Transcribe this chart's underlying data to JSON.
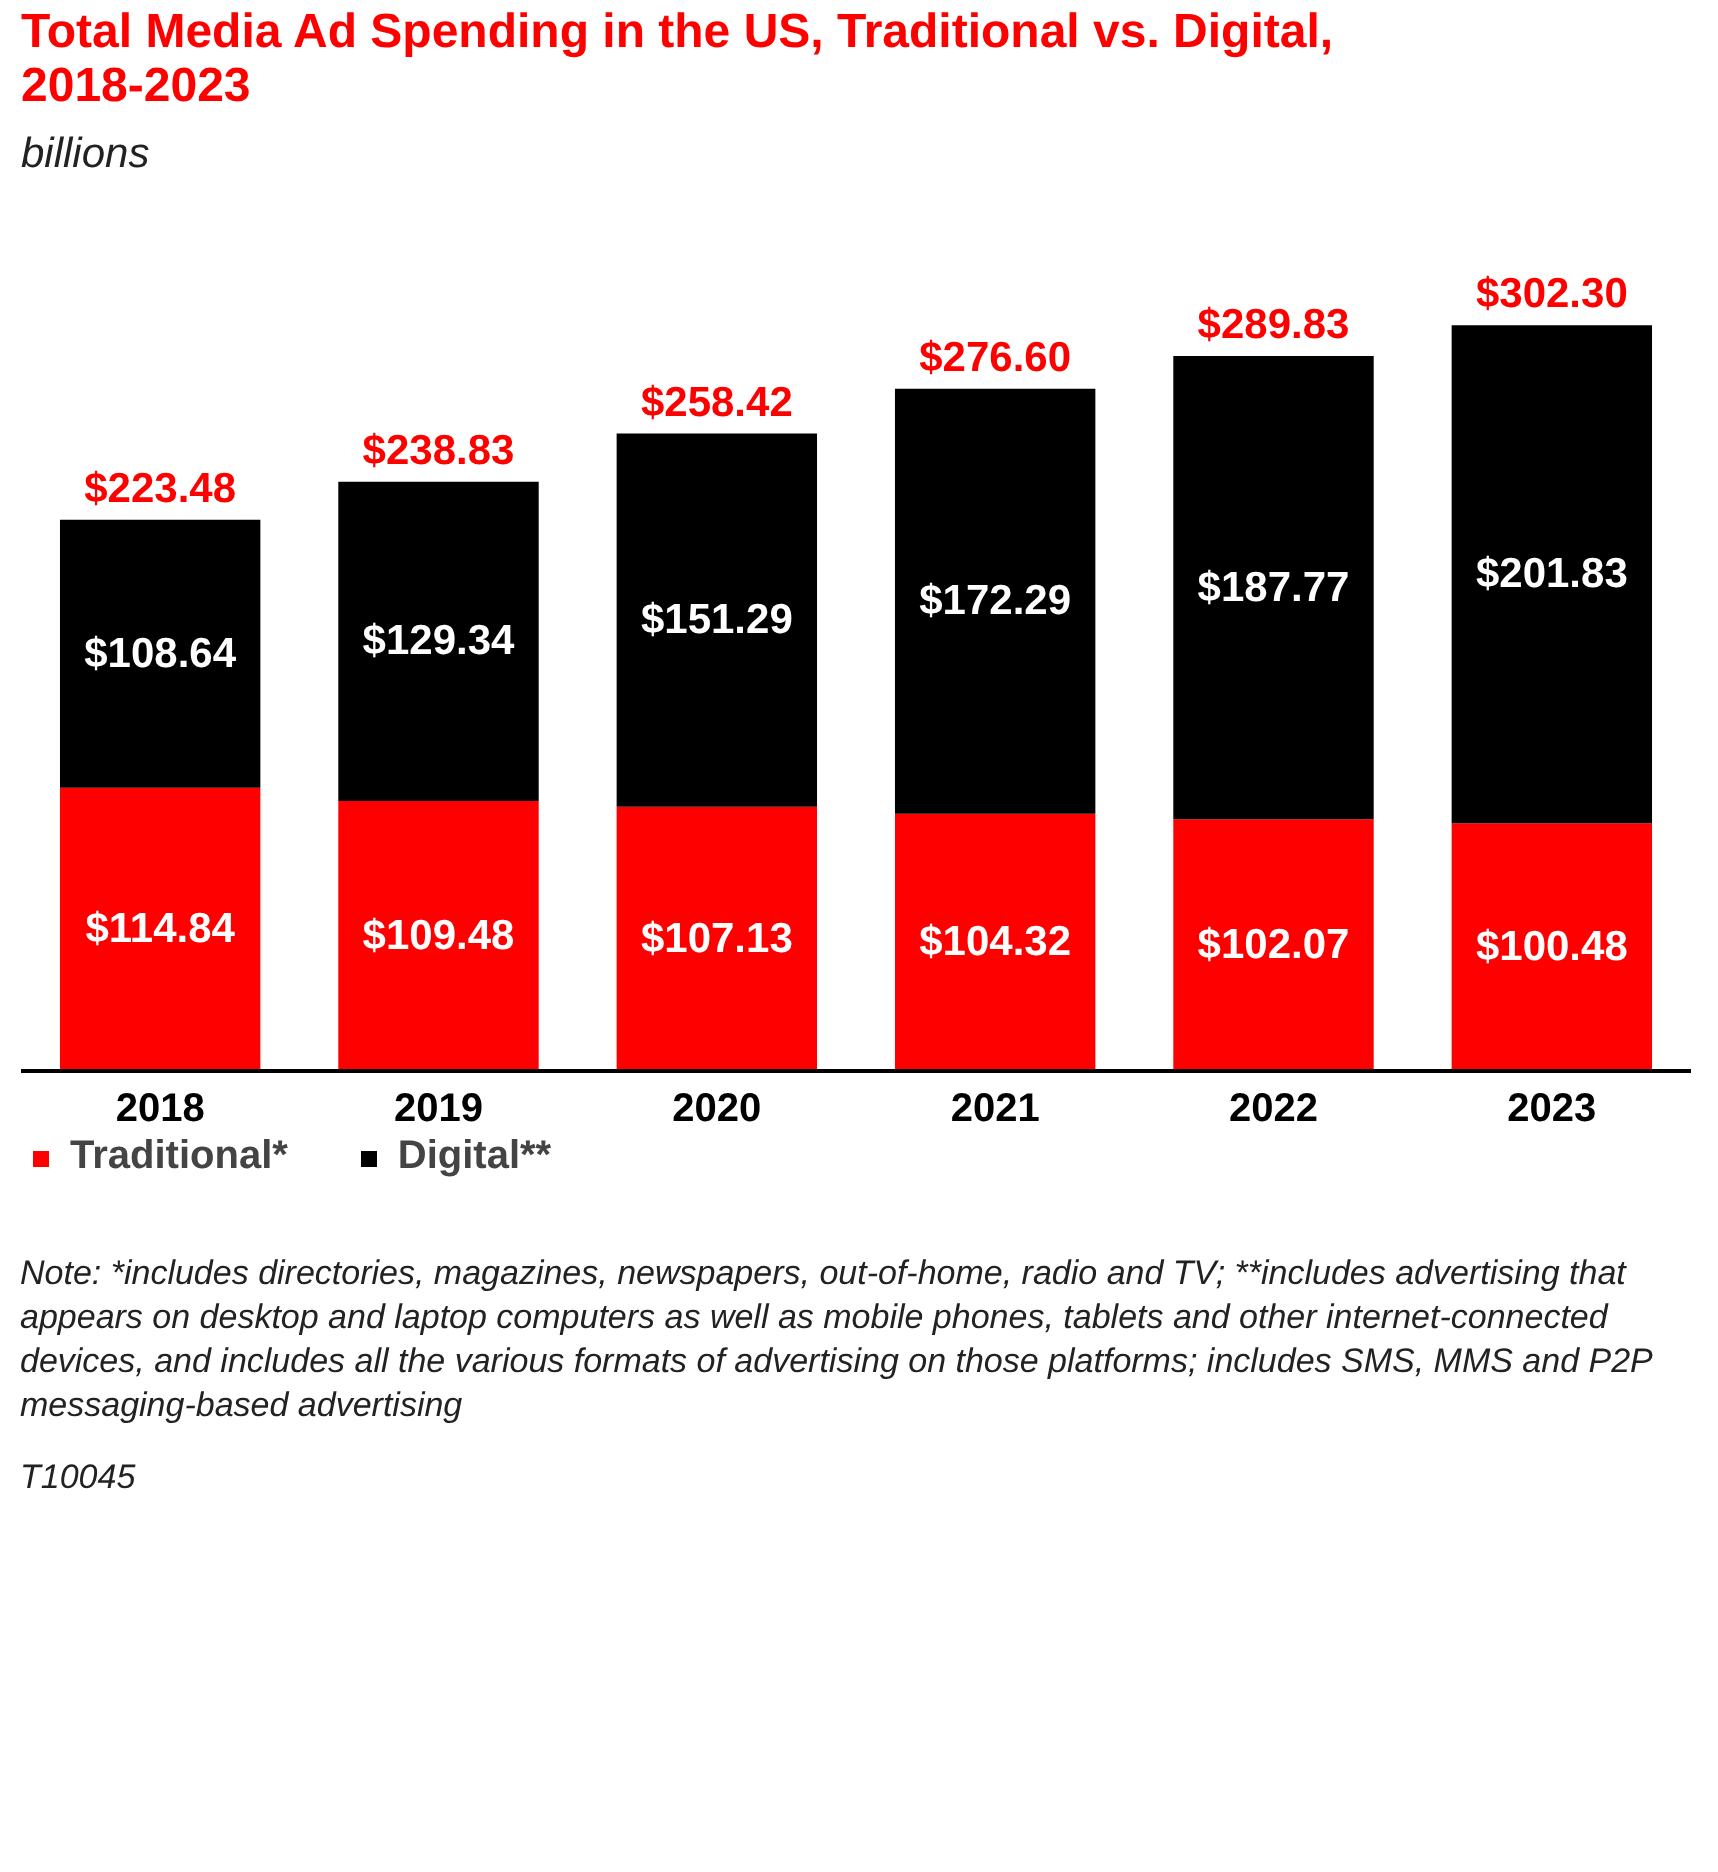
{
  "chart_data": {
    "type": "bar",
    "title": "Total Media Ad Spending in the US, Traditional vs. Digital, 2018-2023",
    "subtitle": "billions",
    "categories": [
      "2018",
      "2019",
      "2020",
      "2021",
      "2022",
      "2023"
    ],
    "stacked": true,
    "series": [
      {
        "name": "Traditional*",
        "color": "#ff0000",
        "values": [
          114.84,
          109.48,
          107.13,
          104.32,
          102.07,
          100.48
        ],
        "value_labels": [
          "$114.84",
          "$109.48",
          "$107.13",
          "$104.32",
          "$102.07",
          "$100.48"
        ]
      },
      {
        "name": "Digital**",
        "color": "#000000",
        "values": [
          108.64,
          129.34,
          151.29,
          172.29,
          187.77,
          201.83
        ],
        "value_labels": [
          "$108.64",
          "$129.34",
          "$151.29",
          "$172.29",
          "$187.77",
          "$201.83"
        ]
      }
    ],
    "totals": [
      "$223.48",
      "$238.83",
      "$258.42",
      "$276.60",
      "$289.83",
      "$302.30"
    ],
    "legend": "bottom",
    "grid": false,
    "tick_labels": "x",
    "annotations": [
      "Note: *includes directories, magazines, newspapers, out-of-home, radio and TV; **includes advertising that appears on desktop and laptop computers as well as mobile phones, tablets and other internet-connected devices, and includes all the various formats of advertising on those platforms; includes SMS, MMS and P2P messaging-based advertising",
      "T10045"
    ]
  }
}
